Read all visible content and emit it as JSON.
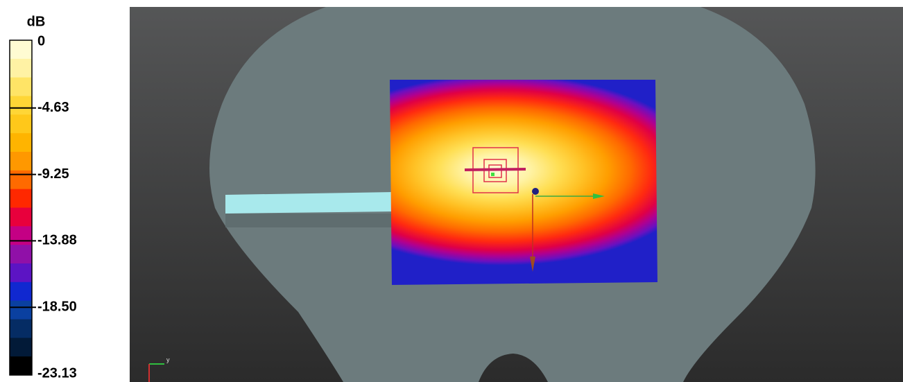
{
  "colorbar": {
    "unit": "dB",
    "labels": [
      "0",
      "-4.63",
      "-9.25",
      "-13.88",
      "-18.50",
      "-23.13"
    ]
  },
  "axes_triad": {
    "label": "y"
  }
}
